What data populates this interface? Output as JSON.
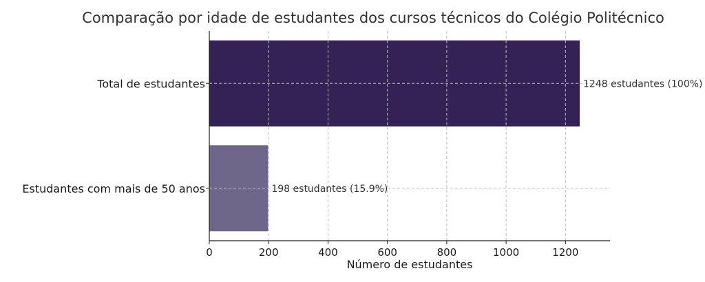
{
  "chart_data": {
    "type": "bar",
    "orientation": "horizontal",
    "title": "Comparação por idade de estudantes dos cursos técnicos do Colégio Politécnico",
    "xlabel": "Número de estudantes",
    "ylabel": "",
    "categories": [
      "Total de estudantes",
      "Estudantes com mais de 50 anos"
    ],
    "values": [
      1248,
      198
    ],
    "data_labels": [
      "1248 estudantes (100%)",
      "198 estudantes (15.9%)"
    ],
    "colors": [
      "#342155",
      "#6e6789"
    ],
    "xlim": [
      0,
      1350
    ],
    "xticks": [
      0,
      200,
      400,
      600,
      800,
      1000,
      1200
    ],
    "grid": true
  }
}
